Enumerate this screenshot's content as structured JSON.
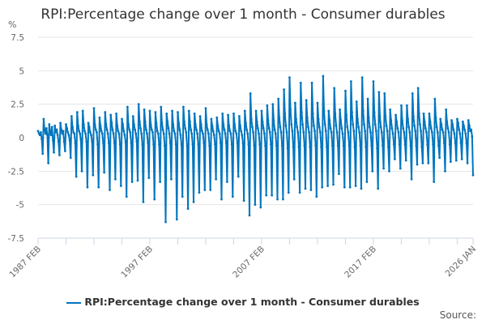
{
  "chart_data": {
    "type": "line",
    "title": "RPI:Percentage change over 1 month - Consumer durables",
    "ylabel": "%",
    "ylim": [
      -7.5,
      7.5
    ],
    "yticks": [
      "7.5",
      "5",
      "2.5",
      "0",
      "-2.5",
      "-5",
      "-7.5"
    ],
    "ytick_values": [
      7.5,
      5,
      2.5,
      0,
      -2.5,
      -5,
      -7.5
    ],
    "xtick_labels": [
      "1987 FEB",
      "1997 FEB",
      "2007 FEB",
      "2017 FEB",
      "2026 JAN"
    ],
    "x_start": "1987 FEB",
    "x_end": "2026 JAN",
    "frequency": "monthly",
    "grid": true,
    "legend": "bottom",
    "color": "#0075be",
    "series": [
      {
        "name": "RPI:Percentage change over 1 month - Consumer durables",
        "values": [
          0.5,
          0.3,
          0.2,
          0.4,
          -0.1,
          -1.2,
          1.4,
          0.6,
          0.3,
          0.7,
          0.2,
          -1.9,
          1.0,
          0.5,
          0.2,
          0.8,
          -0.2,
          -1.1,
          0.9,
          0.4,
          0.6,
          0.2,
          -0.3,
          -1.3,
          1.1,
          0.6,
          0.3,
          0.5,
          -0.3,
          -1.0,
          1.0,
          0.7,
          0.4,
          0.2,
          -0.2,
          -1.5,
          1.6,
          0.8,
          0.4,
          0.3,
          -0.4,
          -2.9,
          1.9,
          0.9,
          0.5,
          0.3,
          -0.2,
          -2.5,
          2.0,
          1.0,
          0.5,
          0.3,
          -0.3,
          -3.7,
          1.1,
          0.8,
          0.4,
          0.2,
          -0.3,
          -2.8,
          2.2,
          1.0,
          0.6,
          0.4,
          -0.5,
          -3.7,
          1.5,
          0.9,
          0.5,
          0.3,
          -0.4,
          -2.6,
          1.9,
          1.0,
          0.6,
          0.3,
          -0.4,
          -3.9,
          1.7,
          1.1,
          0.6,
          0.3,
          -0.4,
          -3.1,
          1.8,
          0.9,
          0.5,
          0.3,
          -0.5,
          -3.6,
          1.4,
          1.0,
          0.5,
          0.2,
          -0.3,
          -4.4,
          2.3,
          1.0,
          0.6,
          0.4,
          -0.4,
          -3.3,
          1.6,
          1.0,
          0.6,
          0.3,
          -0.3,
          -3.2,
          2.5,
          1.2,
          0.7,
          0.3,
          -0.5,
          -4.8,
          2.1,
          1.2,
          0.6,
          0.3,
          -0.4,
          -3.0,
          2.0,
          1.0,
          0.6,
          0.4,
          -0.5,
          -4.6,
          1.9,
          1.1,
          0.5,
          0.3,
          -0.5,
          -3.3,
          2.3,
          1.1,
          0.6,
          0.3,
          -0.6,
          -6.3,
          1.8,
          1.2,
          0.7,
          0.3,
          -0.4,
          -3.1,
          2.0,
          1.0,
          0.5,
          0.3,
          -0.5,
          -6.1,
          1.9,
          1.1,
          0.6,
          0.2,
          -0.5,
          -4.4,
          2.3,
          1.2,
          0.7,
          0.4,
          -0.6,
          -5.3,
          2.0,
          1.2,
          0.6,
          0.3,
          -0.5,
          -4.8,
          1.8,
          1.0,
          0.6,
          0.3,
          -0.5,
          -4.1,
          1.6,
          1.0,
          0.5,
          0.3,
          -0.4,
          -3.9,
          2.2,
          1.0,
          0.6,
          0.3,
          -0.6,
          -3.9,
          1.4,
          0.9,
          0.5,
          0.2,
          -0.5,
          -3.1,
          1.5,
          0.9,
          0.5,
          0.3,
          -0.4,
          -4.6,
          1.8,
          1.0,
          0.6,
          0.3,
          -0.4,
          -3.3,
          1.7,
          0.9,
          0.5,
          0.3,
          -0.5,
          -4.4,
          1.8,
          1.0,
          0.5,
          0.3,
          -0.4,
          -2.9,
          1.6,
          0.9,
          0.5,
          0.2,
          -0.4,
          -4.7,
          2.0,
          1.1,
          0.6,
          0.3,
          -0.5,
          -5.8,
          3.3,
          1.4,
          0.8,
          0.4,
          -0.6,
          -5.0,
          2.0,
          1.2,
          0.7,
          0.3,
          -0.5,
          -5.2,
          2.0,
          1.2,
          0.7,
          0.3,
          -0.6,
          -4.3,
          2.4,
          1.3,
          0.7,
          0.4,
          -0.5,
          -4.3,
          2.5,
          1.3,
          0.6,
          0.3,
          -0.6,
          -4.6,
          2.9,
          1.5,
          0.8,
          0.4,
          -0.6,
          -4.6,
          3.6,
          1.8,
          0.9,
          0.4,
          -0.8,
          -4.1,
          4.5,
          2.1,
          1.0,
          0.5,
          -0.7,
          -3.1,
          2.6,
          1.4,
          0.8,
          0.4,
          -0.7,
          -4.1,
          4.1,
          1.9,
          1.0,
          0.4,
          -0.6,
          -3.8,
          2.8,
          1.5,
          0.8,
          0.4,
          -0.7,
          -3.9,
          4.1,
          1.8,
          0.9,
          0.5,
          -0.6,
          -4.4,
          2.6,
          1.4,
          0.8,
          0.4,
          -0.7,
          -3.7,
          4.6,
          2.0,
          1.0,
          0.5,
          -0.7,
          -3.6,
          2.0,
          1.3,
          0.7,
          0.4,
          -0.6,
          -3.5,
          3.7,
          1.8,
          0.9,
          0.4,
          -0.6,
          -2.7,
          2.1,
          1.3,
          0.7,
          0.3,
          -0.6,
          -3.7,
          3.5,
          1.7,
          0.8,
          0.4,
          -0.6,
          -3.7,
          4.2,
          1.9,
          1.0,
          0.5,
          -0.7,
          -3.6,
          2.7,
          1.4,
          0.8,
          0.4,
          -0.6,
          -3.8,
          4.5,
          2.0,
          1.0,
          0.5,
          -0.7,
          -3.3,
          2.9,
          1.5,
          0.8,
          0.4,
          -0.6,
          -2.5,
          4.2,
          1.9,
          1.0,
          0.5,
          -0.8,
          -3.8,
          3.4,
          1.6,
          0.8,
          0.4,
          -0.6,
          -2.3,
          3.3,
          1.6,
          0.9,
          0.5,
          -0.7,
          -2.5,
          2.1,
          1.3,
          0.7,
          0.3,
          -0.5,
          -1.6,
          1.7,
          1.2,
          0.7,
          0.4,
          -0.5,
          -2.3,
          2.4,
          1.3,
          0.7,
          0.4,
          -0.5,
          -1.7,
          2.4,
          1.4,
          0.8,
          0.4,
          -0.6,
          -3.1,
          3.3,
          1.6,
          0.9,
          0.5,
          -0.6,
          -2.0,
          3.7,
          1.8,
          1.0,
          0.5,
          -0.7,
          -1.9,
          1.8,
          1.2,
          0.7,
          0.4,
          -0.5,
          -1.9,
          1.8,
          1.2,
          0.7,
          0.4,
          -0.5,
          -3.3,
          2.9,
          1.5,
          0.8,
          0.4,
          -0.6,
          -1.5,
          1.4,
          1.0,
          0.6,
          0.4,
          -0.4,
          -2.5,
          2.1,
          1.2,
          0.7,
          0.4,
          -0.5,
          -1.8,
          1.3,
          1.0,
          0.6,
          0.3,
          -0.4,
          -1.7,
          1.4,
          1.1,
          0.6,
          0.3,
          -0.4,
          -1.6,
          1.2,
          0.9,
          0.6,
          0.3,
          -0.4,
          -1.9,
          1.3,
          0.9,
          0.5,
          0.6,
          0.1,
          -2.8
        ]
      }
    ]
  },
  "source_label": "Source:"
}
